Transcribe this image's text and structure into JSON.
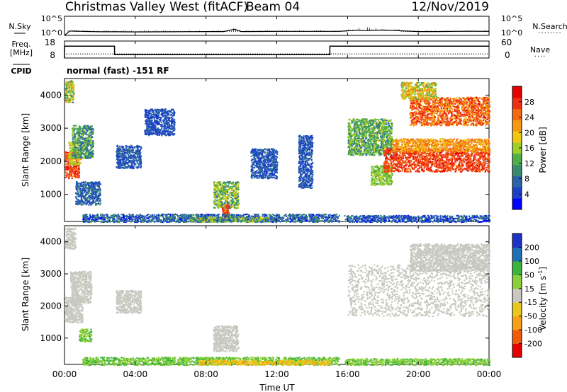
{
  "title": "Christmas Valley West (fitACF)",
  "beam": "Beam 04",
  "date": "12/Nov/2019",
  "mode": "normal (fast) -151 RF",
  "xlabel": "Time UT",
  "colors": {
    "power": [
      "#0000ff",
      "#1a3fc8",
      "#2a64a8",
      "#3a8a6e",
      "#4fae48",
      "#9ccf2a",
      "#f0c814",
      "#f59a10",
      "#f36a12",
      "#ee3012",
      "#e60000"
    ],
    "velocity": [
      "#e60000",
      "#f05a0a",
      "#f7a016",
      "#e8c81a",
      "#c8c8c0",
      "#8ccf3c",
      "#3cb43c",
      "#1e6fb4",
      "#1e32c8"
    ]
  },
  "chart_data": [
    {
      "type": "line",
      "name": "noise-panel",
      "left_labels": [
        "N.Sky"
      ],
      "right_labels": [
        "N.Search"
      ],
      "left_ticks": [
        "10^5",
        "10^0"
      ],
      "right_ticks": [
        "10^5",
        "10^0"
      ],
      "ylim": [
        0,
        5
      ],
      "yscale": "log10",
      "series": [
        {
          "role": "sky-noise",
          "x": [
            0,
            0.3,
            0.6,
            1,
            2,
            3,
            4,
            6,
            8,
            9,
            9.6,
            10,
            12,
            14,
            15,
            15.5,
            16,
            16.7,
            17,
            18,
            19,
            20,
            21,
            22,
            23,
            24
          ],
          "y": [
            0.0,
            1.15,
            1.1,
            1.05,
            0.95,
            0.95,
            0.9,
            0.95,
            1.0,
            1.0,
            1.6,
            1.0,
            1.05,
            1.05,
            1.05,
            1.05,
            1.2,
            1.35,
            1.25,
            1.4,
            1.2,
            1.0,
            1.0,
            1.05,
            1.1,
            1.05
          ]
        }
      ]
    },
    {
      "type": "line",
      "name": "freq-nave-panel",
      "left_labels": [
        "Freq.",
        "[MHz]"
      ],
      "right_labels": [
        "Nave"
      ],
      "left_ticks": [
        "18",
        "8"
      ],
      "right_ticks": [
        "60",
        "0"
      ],
      "ylim": [
        8,
        18
      ],
      "series": [
        {
          "role": "frequency",
          "x": [
            0,
            0,
            2.83,
            2.83,
            15.0,
            15.0,
            24
          ],
          "y": [
            8,
            15,
            15,
            10,
            10,
            15,
            15
          ]
        },
        {
          "role": "nave",
          "x": [
            0,
            24
          ],
          "y": [
            10.4,
            10.4
          ]
        }
      ]
    },
    {
      "type": "heatmap",
      "name": "power-panel",
      "ylabel": "Slant Range [km]",
      "x_ticks": [
        "00:00",
        "04:00",
        "08:00",
        "12:00",
        "16:00",
        "20:00",
        "00:00"
      ],
      "xlim": [
        0,
        24
      ],
      "y_ticks": [
        1000,
        2000,
        3000,
        4000
      ],
      "ylim": [
        180,
        4500
      ],
      "colorbar": {
        "label": "Power [dB]",
        "ticks": [
          4,
          8,
          12,
          16,
          20,
          24,
          28
        ],
        "range": [
          0,
          32
        ]
      },
      "patches": [
        {
          "t": [
            0.0,
            0.8
          ],
          "r": [
            1500,
            2300
          ],
          "v": [
            24,
            30
          ]
        },
        {
          "t": [
            0.2,
            0.9
          ],
          "r": [
            1900,
            2600
          ],
          "v": [
            14,
            22
          ]
        },
        {
          "t": [
            0.4,
            1.6
          ],
          "r": [
            2100,
            3100
          ],
          "v": [
            6,
            16
          ]
        },
        {
          "t": [
            0.0,
            0.5
          ],
          "r": [
            3800,
            4450
          ],
          "v": [
            8,
            22
          ]
        },
        {
          "t": [
            0.6,
            2.0
          ],
          "r": [
            700,
            1400
          ],
          "v": [
            4,
            10
          ]
        },
        {
          "t": [
            2.9,
            4.3
          ],
          "r": [
            1800,
            2500
          ],
          "v": [
            3,
            9
          ]
        },
        {
          "t": [
            4.5,
            6.2
          ],
          "r": [
            2800,
            3600
          ],
          "v": [
            3,
            8
          ]
        },
        {
          "t": [
            8.4,
            9.8
          ],
          "r": [
            600,
            1400
          ],
          "v": [
            8,
            20
          ]
        },
        {
          "t": [
            8.9,
            9.3
          ],
          "r": [
            200,
            700
          ],
          "v": [
            22,
            30
          ]
        },
        {
          "t": [
            1.0,
            15.5
          ],
          "r": [
            180,
            420
          ],
          "v": [
            2,
            12
          ]
        },
        {
          "t": [
            7.0,
            11.5
          ],
          "r": [
            180,
            330
          ],
          "v": [
            6,
            20
          ]
        },
        {
          "t": [
            10.5,
            12.0
          ],
          "r": [
            1500,
            2400
          ],
          "v": [
            3,
            9
          ]
        },
        {
          "t": [
            13.2,
            14.0
          ],
          "r": [
            1200,
            2800
          ],
          "v": [
            3,
            9
          ]
        },
        {
          "t": [
            16.0,
            18.5
          ],
          "r": [
            2200,
            3300
          ],
          "v": [
            8,
            18
          ]
        },
        {
          "t": [
            17.3,
            18.5
          ],
          "r": [
            1300,
            1900
          ],
          "v": [
            12,
            18
          ]
        },
        {
          "t": [
            18.0,
            24.0
          ],
          "r": [
            1700,
            2400
          ],
          "v": [
            24,
            30
          ]
        },
        {
          "t": [
            18.5,
            24.0
          ],
          "r": [
            2300,
            2700
          ],
          "v": [
            18,
            26
          ]
        },
        {
          "t": [
            19.5,
            24.0
          ],
          "r": [
            3100,
            3950
          ],
          "v": [
            20,
            30
          ]
        },
        {
          "t": [
            19.0,
            21.0
          ],
          "r": [
            3900,
            4400
          ],
          "v": [
            12,
            24
          ]
        },
        {
          "t": [
            15.8,
            24.0
          ],
          "r": [
            180,
            380
          ],
          "v": [
            2,
            10
          ]
        }
      ]
    },
    {
      "type": "heatmap",
      "name": "velocity-panel",
      "ylabel": "Slant Range [km]",
      "x_ticks": [
        "00:00",
        "04:00",
        "08:00",
        "12:00",
        "16:00",
        "20:00",
        "00:00"
      ],
      "xlim": [
        0,
        24
      ],
      "y_ticks": [
        1000,
        2000,
        3000,
        4000
      ],
      "ylim": [
        180,
        4500
      ],
      "colorbar": {
        "label": "Velocity [m s^-1]",
        "ticks": [
          200,
          100,
          50,
          15,
          -15,
          -50,
          -100,
          -200
        ],
        "range": [
          -250,
          250
        ]
      },
      "patches": [
        {
          "t": [
            0.0,
            1.0
          ],
          "r": [
            1500,
            2300
          ],
          "v": [
            -15,
            15
          ]
        },
        {
          "t": [
            0.3,
            1.5
          ],
          "r": [
            2100,
            3100
          ],
          "v": [
            -15,
            15
          ]
        },
        {
          "t": [
            0.8,
            1.5
          ],
          "r": [
            900,
            1300
          ],
          "v": [
            20,
            60
          ]
        },
        {
          "t": [
            0.0,
            0.6
          ],
          "r": [
            3800,
            4450
          ],
          "v": [
            -15,
            15
          ]
        },
        {
          "t": [
            2.9,
            4.3
          ],
          "r": [
            1800,
            2500
          ],
          "v": [
            -15,
            15
          ]
        },
        {
          "t": [
            8.4,
            9.8
          ],
          "r": [
            600,
            1400
          ],
          "v": [
            -15,
            15
          ]
        },
        {
          "t": [
            1.0,
            15.5
          ],
          "r": [
            180,
            420
          ],
          "v": [
            20,
            70
          ]
        },
        {
          "t": [
            7.5,
            15.0
          ],
          "r": [
            180,
            330
          ],
          "v": [
            -60,
            -20
          ]
        },
        {
          "t": [
            16.0,
            24.0
          ],
          "r": [
            1700,
            3300
          ],
          "v": [
            -15,
            15
          ]
        },
        {
          "t": [
            19.5,
            24.0
          ],
          "r": [
            3100,
            3950
          ],
          "v": [
            -15,
            15
          ]
        },
        {
          "t": [
            15.8,
            24.0
          ],
          "r": [
            180,
            380
          ],
          "v": [
            20,
            60
          ]
        }
      ]
    }
  ]
}
